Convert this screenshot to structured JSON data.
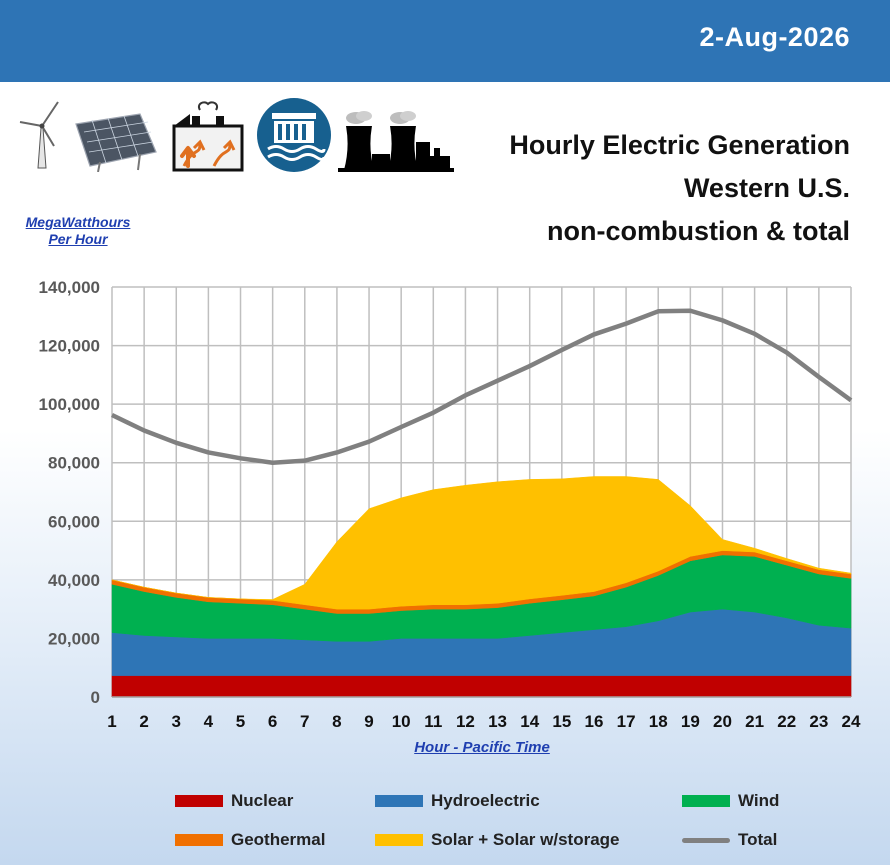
{
  "header": {
    "date": "2-Aug-2026"
  },
  "title_lines": [
    "Hourly Electric Generation",
    "Western U.S.",
    "non-combustion & total"
  ],
  "unit_label_lines": [
    "MegaWatthours",
    "Per Hour"
  ],
  "icons": [
    "wind-turbine-icon",
    "solar-panel-icon",
    "geothermal-plant-icon",
    "hydroelectric-dam-icon",
    "nuclear-plant-icon"
  ],
  "chart_data": {
    "type": "area",
    "xlabel": "Hour - Pacific Time",
    "ylabel": "MegaWatthours Per Hour",
    "x": [
      1,
      2,
      3,
      4,
      5,
      6,
      7,
      8,
      9,
      10,
      11,
      12,
      13,
      14,
      15,
      16,
      17,
      18,
      19,
      20,
      21,
      22,
      23,
      24
    ],
    "ylim": [
      0,
      140000
    ],
    "yticks": [
      0,
      20000,
      40000,
      60000,
      80000,
      100000,
      120000,
      140000
    ],
    "grid": true,
    "legend_position": "bottom",
    "stacked": true,
    "series": [
      {
        "name": "Nuclear",
        "kind": "area",
        "color": "#c00000",
        "values": [
          7300,
          7300,
          7300,
          7300,
          7300,
          7300,
          7300,
          7300,
          7300,
          7300,
          7300,
          7300,
          7300,
          7300,
          7300,
          7300,
          7300,
          7300,
          7300,
          7300,
          7300,
          7300,
          7300,
          7300
        ]
      },
      {
        "name": "Hydroelectric",
        "kind": "area",
        "color": "#2e75b6",
        "values": [
          14700,
          13700,
          13200,
          12700,
          12700,
          12700,
          12200,
          11700,
          11700,
          12700,
          12700,
          12700,
          12700,
          13700,
          14700,
          15700,
          16700,
          18700,
          21700,
          22700,
          21700,
          19700,
          17200,
          16200
        ]
      },
      {
        "name": "Wind",
        "kind": "area",
        "color": "#00b050",
        "values": [
          16500,
          15000,
          13500,
          12500,
          12000,
          11500,
          10500,
          9500,
          9500,
          9500,
          10000,
          10000,
          10500,
          11000,
          11200,
          11500,
          13500,
          15500,
          17500,
          18500,
          19000,
          18000,
          17500,
          17000
        ]
      },
      {
        "name": "Geothermal",
        "kind": "area",
        "color": "#f07000",
        "values": [
          1500,
          1500,
          1500,
          1500,
          1500,
          1500,
          1500,
          1500,
          1500,
          1500,
          1500,
          1500,
          1500,
          1500,
          1500,
          1500,
          1500,
          1500,
          1500,
          1500,
          1500,
          1500,
          1500,
          1500
        ]
      },
      {
        "name": "Solar + Solar w/storage",
        "kind": "area",
        "color": "#ffc000",
        "values": [
          0,
          0,
          0,
          0,
          0,
          300,
          7000,
          23000,
          34300,
          37000,
          39300,
          40800,
          41500,
          40800,
          39800,
          39300,
          36300,
          31300,
          17300,
          3800,
          1300,
          800,
          500,
          300
        ]
      },
      {
        "name": "Total",
        "kind": "line",
        "color": "#808080",
        "values": [
          96300,
          91000,
          86800,
          83500,
          81500,
          80000,
          80700,
          83500,
          87200,
          92200,
          97100,
          103000,
          108000,
          113000,
          118500,
          123800,
          127500,
          131700,
          131900,
          128600,
          124000,
          117600,
          109300,
          101300
        ]
      }
    ]
  }
}
